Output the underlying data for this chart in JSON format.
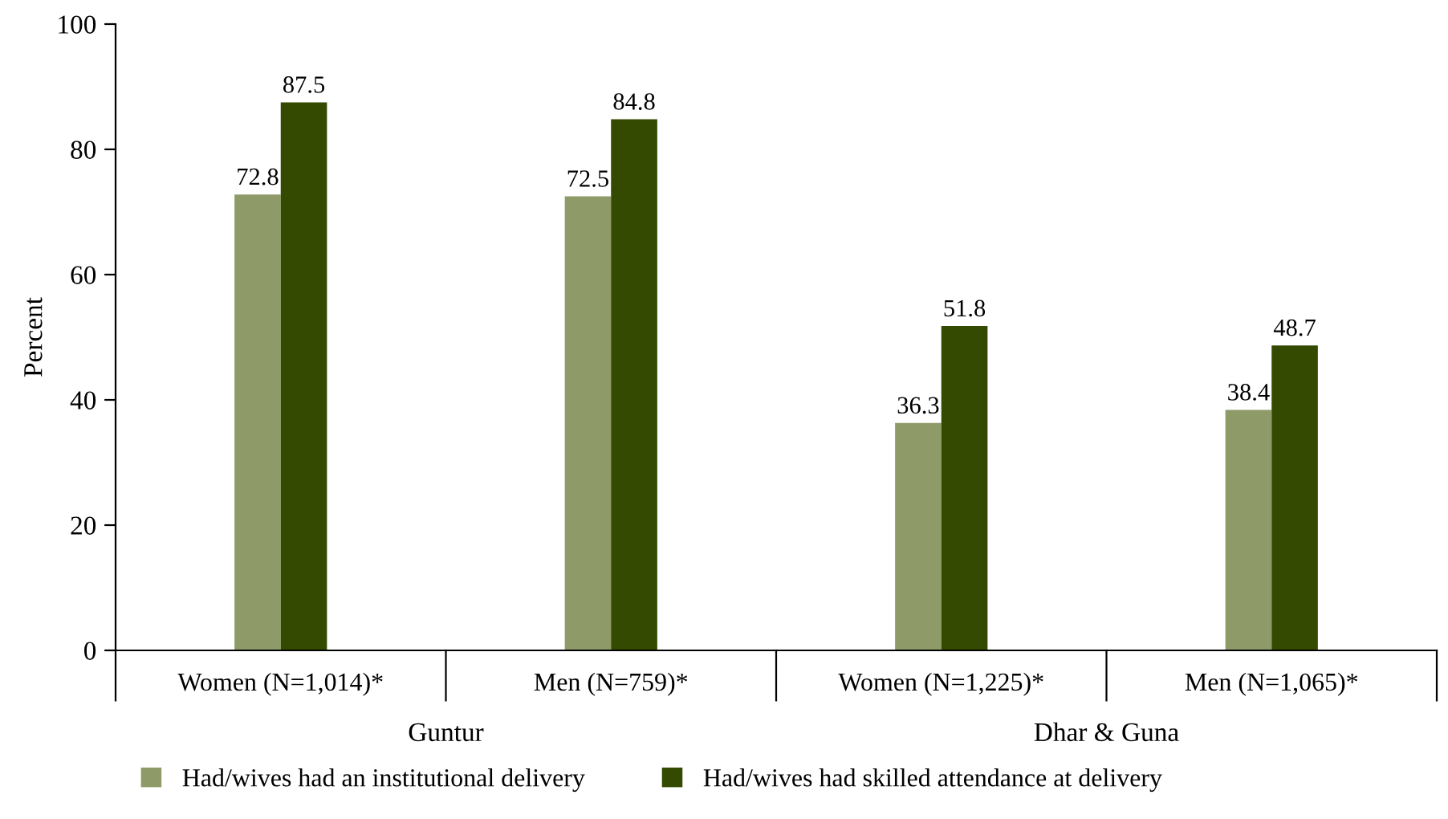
{
  "chart_data": {
    "type": "bar",
    "ylabel": "Percent",
    "categories": [
      "Women (N=1,014)*",
      "Men (N=759)*",
      "Women (N=1,225)*",
      "Men (N=1,065)*"
    ],
    "series": [
      {
        "name": "Had/wives had an institutional delivery",
        "color": "#8e9b69",
        "values": [
          72.8,
          72.5,
          36.3,
          38.4
        ]
      },
      {
        "name": "Had/wives had skilled attendance at delivery",
        "color": "#344a00",
        "values": [
          87.5,
          84.8,
          51.8,
          48.7
        ]
      }
    ],
    "ylim": [
      0,
      100
    ],
    "yticks": [
      0,
      20,
      40,
      60,
      80,
      100
    ],
    "data_labels": true,
    "grid": false,
    "legend": "bottom",
    "annotations": [
      "Guntur",
      "Dhar & Guna"
    ]
  }
}
